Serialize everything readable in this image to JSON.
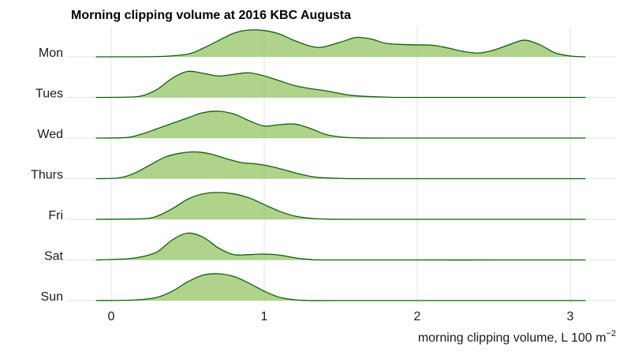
{
  "chart_data": {
    "type": "ridgeline",
    "title": "Morning clipping volume at 2016 KBC Augusta",
    "xlabel": "morning clipping volume, L 100 m",
    "xlabel_sup": "−2",
    "ylabel": "",
    "xlim": [
      -0.12,
      3.12
    ],
    "x_ticks": [
      0,
      1,
      2,
      3
    ],
    "x_tick_labels": [
      "0",
      "1",
      "2",
      "3"
    ],
    "grid": true,
    "fill_color": "#8dc05a",
    "line_color": "#0f5e0f",
    "categories": [
      "Mon",
      "Tues",
      "Wed",
      "Thurs",
      "Fri",
      "Sat",
      "Sun"
    ],
    "series": [
      {
        "category": "Mon",
        "x": [
          -0.1,
          0.3,
          0.5,
          0.6,
          0.7,
          0.8,
          0.9,
          1.0,
          1.1,
          1.2,
          1.35,
          1.5,
          1.6,
          1.7,
          1.8,
          1.95,
          2.1,
          2.2,
          2.3,
          2.4,
          2.5,
          2.6,
          2.7,
          2.8,
          2.9,
          3.0,
          3.1
        ],
        "y": [
          0.0,
          0.01,
          0.1,
          0.32,
          0.6,
          0.88,
          1.0,
          0.98,
          0.85,
          0.6,
          0.35,
          0.55,
          0.72,
          0.66,
          0.5,
          0.45,
          0.43,
          0.33,
          0.2,
          0.14,
          0.25,
          0.45,
          0.62,
          0.45,
          0.15,
          0.03,
          0.0
        ]
      },
      {
        "category": "Tues",
        "x": [
          -0.1,
          0.1,
          0.2,
          0.3,
          0.4,
          0.5,
          0.6,
          0.7,
          0.8,
          0.9,
          1.0,
          1.1,
          1.2,
          1.3,
          1.4,
          1.5,
          1.6,
          1.8,
          2.0,
          3.1
        ],
        "y": [
          0.0,
          0.01,
          0.06,
          0.3,
          0.72,
          0.97,
          0.9,
          0.8,
          0.86,
          0.92,
          0.8,
          0.62,
          0.44,
          0.33,
          0.25,
          0.14,
          0.06,
          0.01,
          0.0,
          0.0
        ]
      },
      {
        "category": "Wed",
        "x": [
          -0.1,
          0.1,
          0.2,
          0.3,
          0.4,
          0.5,
          0.6,
          0.7,
          0.8,
          0.9,
          1.0,
          1.1,
          1.2,
          1.3,
          1.4,
          1.5,
          1.6,
          1.8,
          3.1
        ],
        "y": [
          0.0,
          0.02,
          0.15,
          0.35,
          0.55,
          0.75,
          0.95,
          1.0,
          0.9,
          0.65,
          0.45,
          0.5,
          0.52,
          0.36,
          0.14,
          0.04,
          0.01,
          0.0,
          0.0
        ]
      },
      {
        "category": "Thurs",
        "x": [
          -0.1,
          0.05,
          0.15,
          0.25,
          0.35,
          0.45,
          0.55,
          0.65,
          0.75,
          0.85,
          0.95,
          1.05,
          1.15,
          1.25,
          1.35,
          1.5,
          1.7,
          3.1
        ],
        "y": [
          0.0,
          0.03,
          0.2,
          0.5,
          0.8,
          0.95,
          1.0,
          0.92,
          0.75,
          0.6,
          0.55,
          0.45,
          0.3,
          0.15,
          0.05,
          0.01,
          0.0,
          0.0
        ]
      },
      {
        "category": "Fri",
        "x": [
          -0.1,
          0.2,
          0.3,
          0.4,
          0.5,
          0.6,
          0.7,
          0.8,
          0.9,
          1.0,
          1.1,
          1.2,
          1.3,
          1.4,
          1.6,
          3.1
        ],
        "y": [
          0.0,
          0.02,
          0.12,
          0.4,
          0.75,
          0.95,
          1.0,
          0.95,
          0.8,
          0.55,
          0.3,
          0.12,
          0.04,
          0.01,
          0.0,
          0.0
        ]
      },
      {
        "category": "Sat",
        "x": [
          -0.1,
          0.1,
          0.2,
          0.3,
          0.4,
          0.5,
          0.6,
          0.7,
          0.8,
          0.9,
          1.0,
          1.1,
          1.2,
          1.3,
          1.5,
          3.1
        ],
        "y": [
          0.0,
          0.04,
          0.12,
          0.3,
          0.75,
          1.0,
          0.85,
          0.45,
          0.2,
          0.2,
          0.22,
          0.18,
          0.08,
          0.02,
          0.0,
          0.0
        ]
      },
      {
        "category": "Sun",
        "x": [
          -0.1,
          0.1,
          0.2,
          0.3,
          0.4,
          0.5,
          0.6,
          0.7,
          0.8,
          0.9,
          1.0,
          1.1,
          1.2,
          1.3,
          1.5,
          3.1
        ],
        "y": [
          0.0,
          0.01,
          0.04,
          0.12,
          0.35,
          0.7,
          0.95,
          1.0,
          0.9,
          0.65,
          0.35,
          0.12,
          0.03,
          0.0,
          0.0,
          0.0
        ]
      }
    ]
  }
}
